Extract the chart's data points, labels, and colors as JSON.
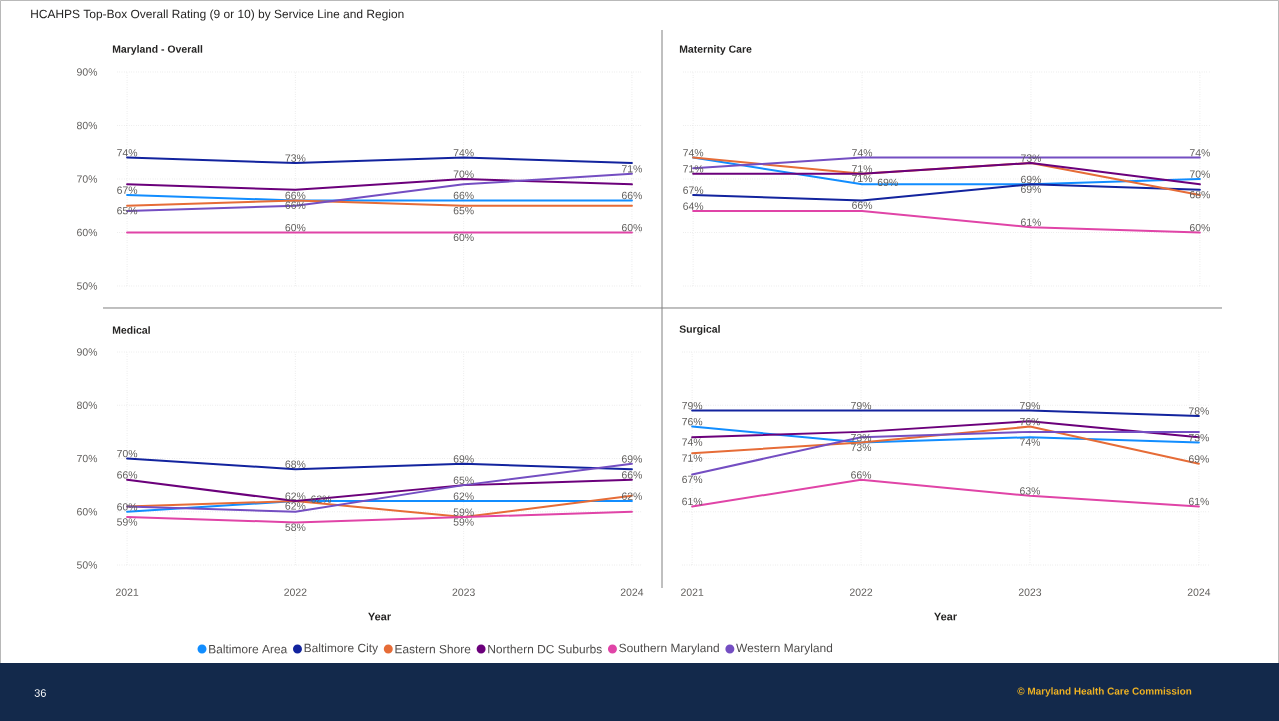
{
  "chart_data": [
    {
      "type": "line",
      "title": "HCAHPS Top-Box Overall Rating (9 or 10) by Service Line and Region",
      "subtitle": "Maryland - Overall",
      "categories": [
        "2021",
        "2022",
        "2023",
        "2024"
      ],
      "ylim": [
        50,
        90
      ],
      "yticks": [
        {
          "value": 50,
          "label": "50%"
        },
        {
          "value": 60,
          "label": "60%"
        },
        {
          "value": 70,
          "label": "70%"
        },
        {
          "value": 80,
          "label": "80%"
        },
        {
          "value": 90,
          "label": "90%"
        }
      ],
      "grid": true,
      "tick_labels": "y",
      "legend": "bottom",
      "annotations": [
        "36",
        "© Maryland Health Care Commission"
      ],
      "series": [
        {
          "name": "Baltimore Area",
          "color": "#118dff",
          "values": [
            67,
            66,
            66,
            66
          ],
          "value_labels": [
            "67%",
            "66%",
            "66%",
            "66%"
          ]
        },
        {
          "name": "Baltimore City",
          "color": "#12239e",
          "values": [
            74,
            73,
            74,
            73
          ],
          "value_labels": [
            "74%",
            "73%",
            "74%",
            null
          ]
        },
        {
          "name": "Eastern Shore",
          "color": "#e66c37",
          "values": [
            65,
            66,
            65,
            65
          ],
          "value_labels": [
            "65%",
            "66%",
            "65%",
            null
          ]
        },
        {
          "name": "Northern DC Suburbs",
          "color": "#6b007b",
          "values": [
            69,
            68,
            70,
            69
          ],
          "value_labels": [
            null,
            null,
            "70%",
            null
          ]
        },
        {
          "name": "Southern Maryland",
          "color": "#e044a7",
          "values": [
            60,
            60,
            60,
            60
          ],
          "value_labels": [
            null,
            "60%",
            "60%",
            "60%"
          ]
        },
        {
          "name": "Western Maryland",
          "color": "#744ec2",
          "values": [
            64,
            65,
            69,
            71
          ],
          "value_labels": [
            null,
            null,
            null,
            "71%"
          ]
        }
      ]
    },
    {
      "type": "line",
      "title": "Maternity Care",
      "categories": [
        "2021",
        "2022",
        "2023",
        "2024"
      ],
      "ylim": [
        50,
        90
      ],
      "yticks": [
        {
          "value": 50,
          "label": null
        },
        {
          "value": 60,
          "label": null
        },
        {
          "value": 70,
          "label": null
        },
        {
          "value": 80,
          "label": null
        },
        {
          "value": 90,
          "label": null
        }
      ],
      "grid": true,
      "tick_labels": false,
      "series": [
        {
          "color": "#118dff",
          "values": [
            74,
            69,
            69,
            70
          ],
          "value_labels": [
            null,
            "69%",
            "69%",
            "70%"
          ]
        },
        {
          "color": "#12239e",
          "values": [
            67,
            66,
            69,
            68
          ],
          "value_labels": [
            "67%",
            "66%",
            "69%",
            "68%"
          ]
        },
        {
          "color": "#e66c37",
          "values": [
            74,
            71,
            73,
            67
          ],
          "value_labels": [
            "74%",
            "71%",
            null,
            null
          ]
        },
        {
          "color": "#6b007b",
          "values": [
            71,
            71,
            73,
            69
          ],
          "value_labels": [
            "71%",
            "71%",
            "73%",
            null
          ]
        },
        {
          "color": "#e044a7",
          "values": [
            64,
            64,
            61,
            60
          ],
          "value_labels": [
            "64%",
            null,
            "61%",
            "60%"
          ]
        },
        {
          "color": "#744ec2",
          "values": [
            72,
            74,
            74,
            74
          ],
          "value_labels": [
            null,
            "74%",
            null,
            "74%"
          ]
        }
      ]
    },
    {
      "type": "line",
      "title": "Medical",
      "xlabel": "Year",
      "categories": [
        "2021",
        "2022",
        "2023",
        "2024"
      ],
      "ylim": [
        50,
        90
      ],
      "yticks": [
        {
          "value": 50,
          "label": "50%"
        },
        {
          "value": 60,
          "label": "60%"
        },
        {
          "value": 70,
          "label": "70%"
        },
        {
          "value": 80,
          "label": "80%"
        },
        {
          "value": 90,
          "label": "90%"
        }
      ],
      "grid": true,
      "series": [
        {
          "color": "#118dff",
          "values": [
            60,
            62,
            62,
            62
          ],
          "value_labels": [
            "60%",
            "62%",
            "62%",
            "62%"
          ]
        },
        {
          "color": "#12239e",
          "values": [
            70,
            68,
            69,
            68
          ],
          "value_labels": [
            "70%",
            "68%",
            "69%",
            null
          ]
        },
        {
          "color": "#e66c37",
          "values": [
            61,
            62,
            59,
            63
          ],
          "value_labels": [
            null,
            "62%",
            "59%",
            null
          ]
        },
        {
          "color": "#6b007b",
          "values": [
            66,
            62,
            65,
            66
          ],
          "value_labels": [
            "66%",
            "62%",
            null,
            "66%"
          ]
        },
        {
          "color": "#e044a7",
          "values": [
            59,
            58,
            59,
            60
          ],
          "value_labels": [
            "59%",
            "58%",
            "59%",
            null
          ]
        },
        {
          "color": "#744ec2",
          "values": [
            61,
            60,
            65,
            69
          ],
          "value_labels": [
            null,
            null,
            "65%",
            "69%"
          ]
        }
      ]
    },
    {
      "type": "line",
      "title": "Surgical",
      "xlabel": "Year",
      "categories": [
        "2021",
        "2022",
        "2023",
        "2024"
      ],
      "ylim": [
        50,
        90
      ],
      "yticks": [
        {
          "value": 50,
          "label": null
        },
        {
          "value": 60,
          "label": null
        },
        {
          "value": 70,
          "label": null
        },
        {
          "value": 80,
          "label": null
        },
        {
          "value": 90,
          "label": null
        }
      ],
      "grid": true,
      "tick_labels": "x",
      "series": [
        {
          "color": "#118dff",
          "values": [
            76,
            73,
            74,
            73
          ],
          "value_labels": [
            "76%",
            "73%",
            "74%",
            "73%"
          ]
        },
        {
          "color": "#12239e",
          "values": [
            79,
            79,
            79,
            78
          ],
          "value_labels": [
            "79%",
            "79%",
            "79%",
            "78%"
          ]
        },
        {
          "color": "#e66c37",
          "values": [
            71,
            73,
            76,
            69
          ],
          "value_labels": [
            "71%",
            "73%",
            "76%",
            "69%"
          ]
        },
        {
          "color": "#6b007b",
          "values": [
            74,
            75,
            77,
            74
          ],
          "value_labels": [
            "74%",
            null,
            null,
            null
          ]
        },
        {
          "color": "#e044a7",
          "values": [
            61,
            66,
            63,
            61
          ],
          "value_labels": [
            "61%",
            "66%",
            "63%",
            "61%"
          ]
        },
        {
          "color": "#744ec2",
          "values": [
            67,
            74,
            75,
            75
          ],
          "value_labels": [
            "67%",
            null,
            null,
            null
          ]
        }
      ]
    }
  ]
}
